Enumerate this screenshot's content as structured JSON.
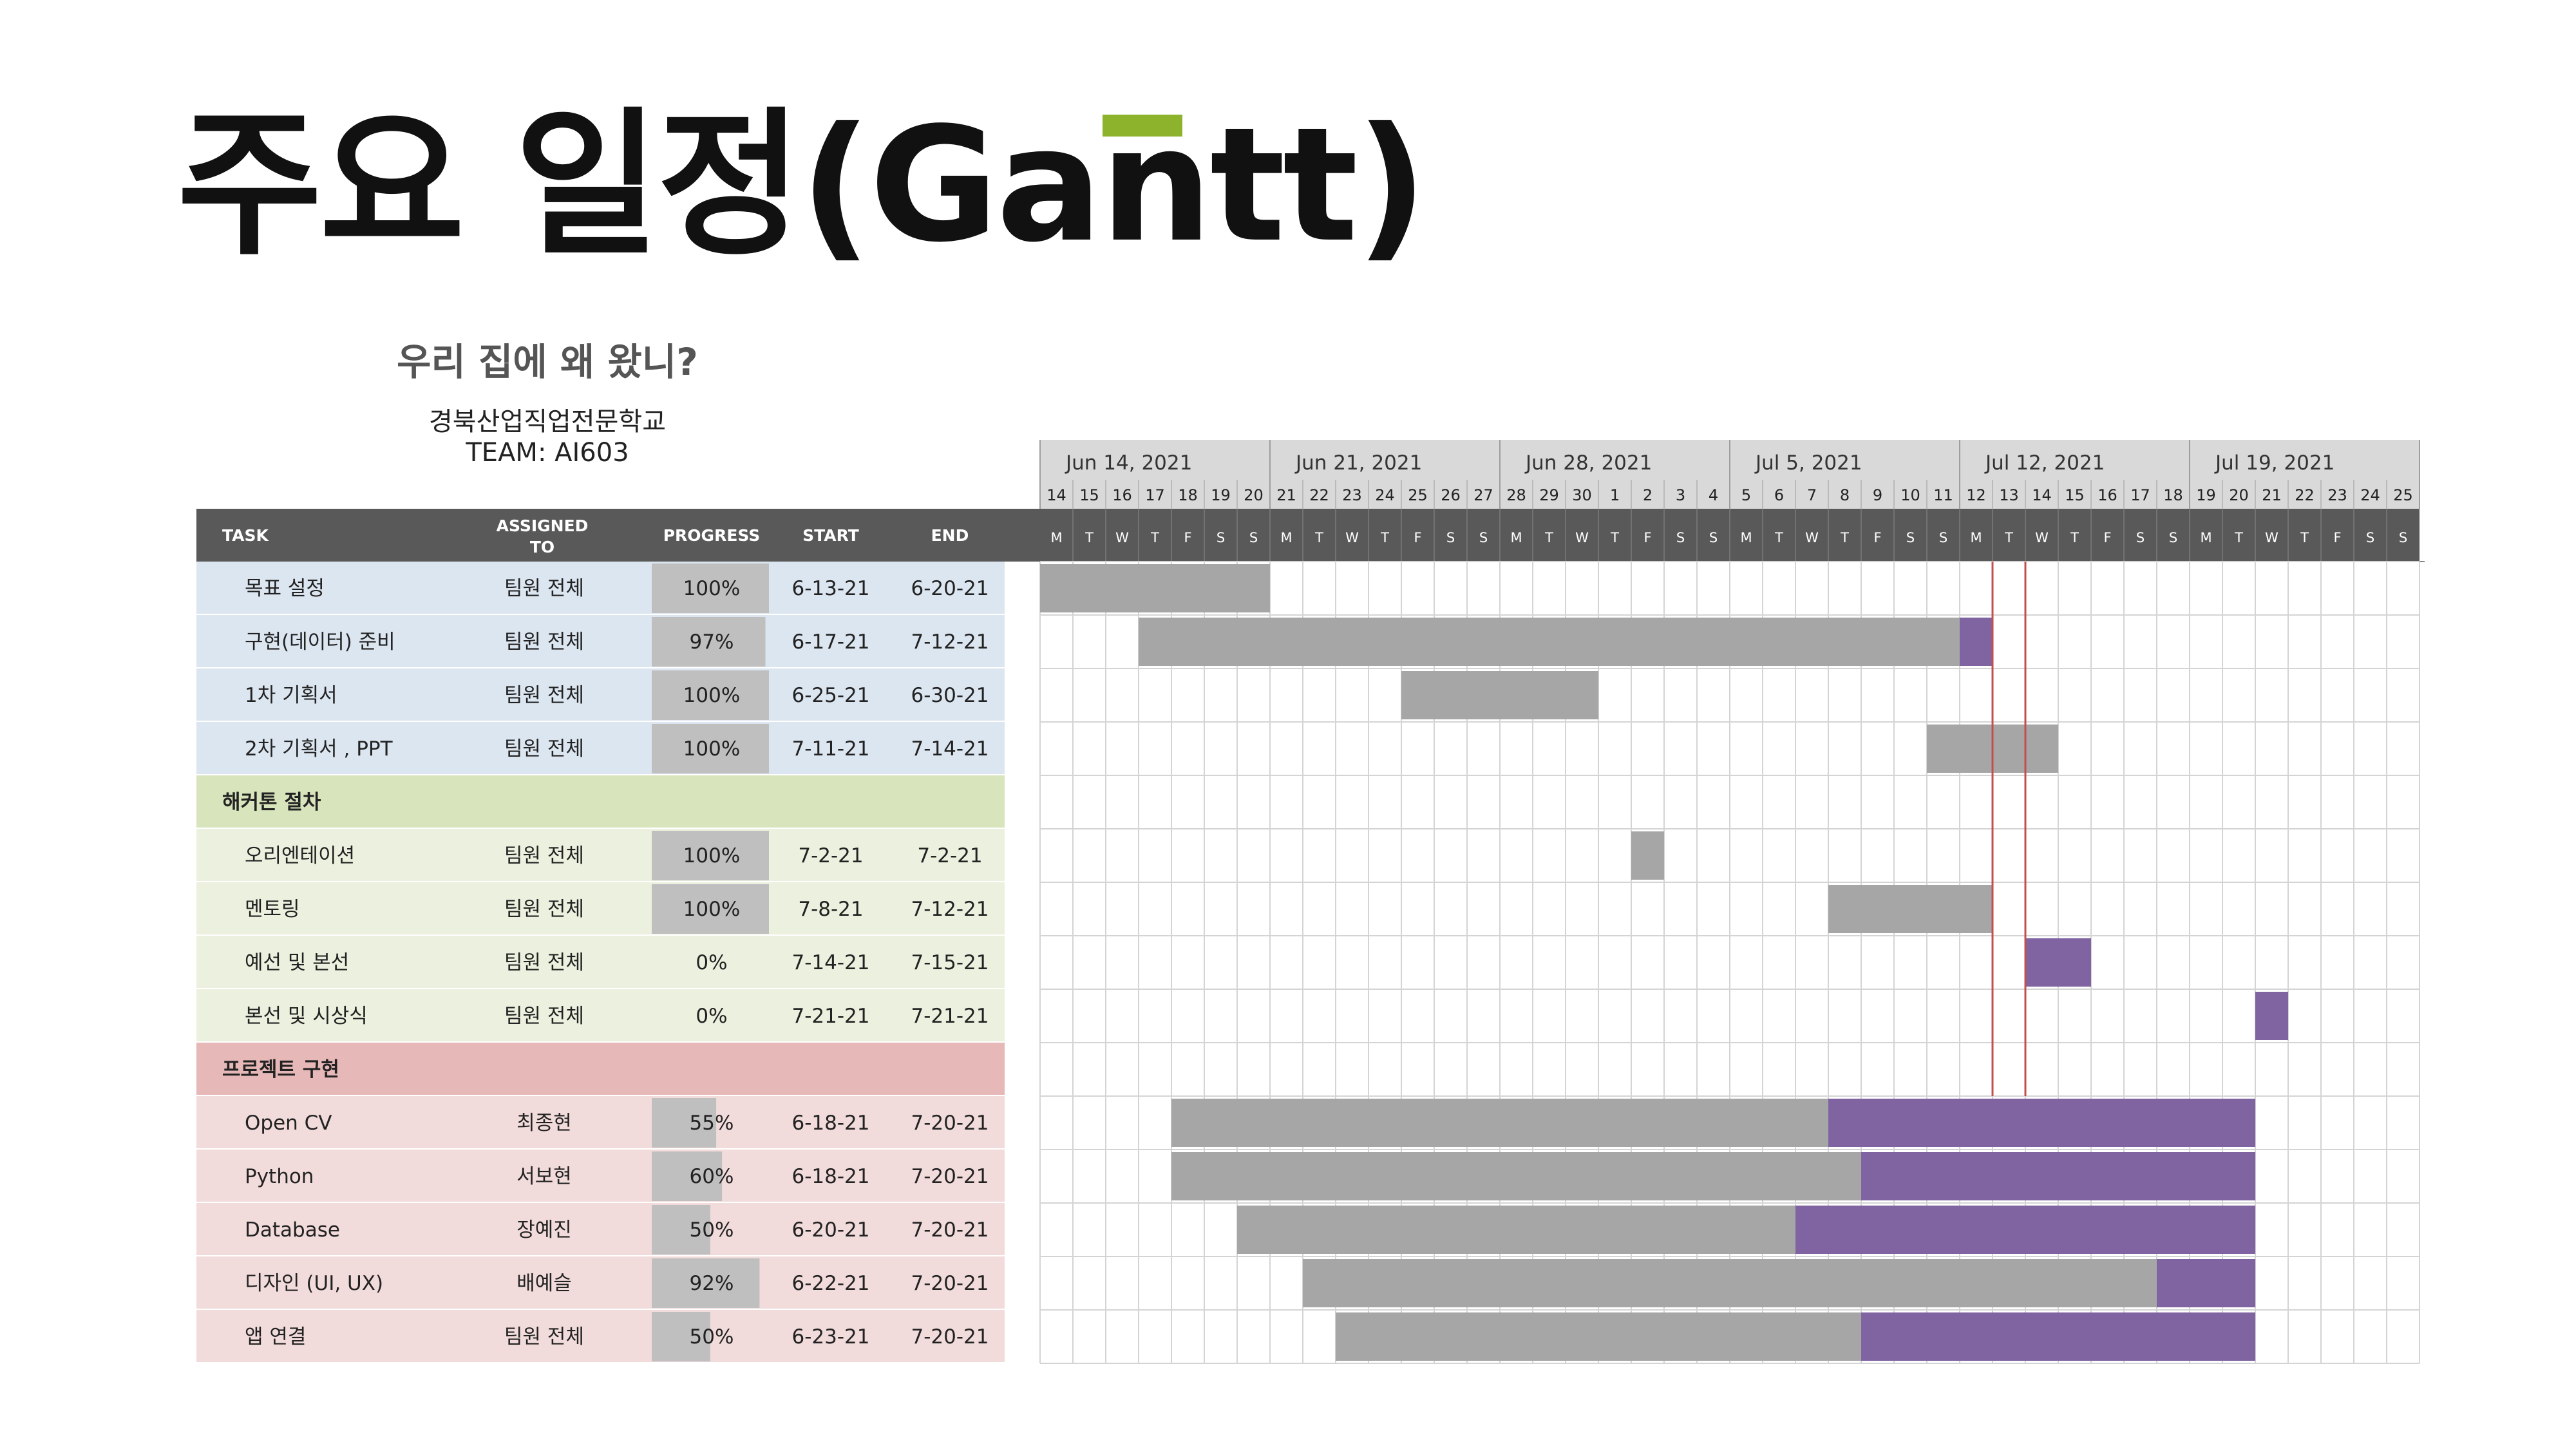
{
  "slide": {
    "title": "주요 일정(Gantt)",
    "accent_color": "#8db32c"
  },
  "project": {
    "name": "우리 집에 왜 왔니?",
    "school": "경북산업직업전문학교",
    "team": "TEAM: AI603"
  },
  "chart_data": {
    "type": "table",
    "chart_type": "gantt",
    "columns": [
      "TASK",
      "ASSIGNED TO",
      "PROGRESS",
      "START",
      "END"
    ],
    "week_labels": [
      "Jun 14, 2021",
      "Jun 21, 2021",
      "Jun 28, 2021",
      "Jul 5, 2021",
      "Jul 12, 2021",
      "Jul 19, 2021"
    ],
    "week_days": [
      [
        "14",
        "15",
        "16",
        "17",
        "18",
        "19",
        "20"
      ],
      [
        "21",
        "22",
        "23",
        "24",
        "25",
        "26",
        "27"
      ],
      [
        "28",
        "29",
        "30",
        "1",
        "2",
        "3",
        "4"
      ],
      [
        "5",
        "6",
        "7",
        "8",
        "9",
        "10",
        "11"
      ],
      [
        "12",
        "13",
        "14",
        "15",
        "16",
        "17",
        "18"
      ],
      [
        "19",
        "20",
        "21",
        "22",
        "23",
        "24",
        "25"
      ]
    ],
    "weekday_letters": [
      "M",
      "T",
      "W",
      "T",
      "F",
      "S",
      "S"
    ],
    "timeline_start": "2021-06-14",
    "timeline_end": "2021-07-25",
    "today_range": [
      "2021-07-13",
      "2021-07-14"
    ],
    "colors": {
      "header_bg": "#595959",
      "week_bg": "#d9d9d9",
      "bar_done": "#a6a6a6",
      "bar_remaining": "#8064a2",
      "today_line": "#c0504d",
      "progress_fill": "#bfbfbf"
    },
    "rows": [
      {
        "kind": "task",
        "section": "blue",
        "task": "목표 설정",
        "assigned": "팀원 전체",
        "progress": "100%",
        "start": "6-13-21",
        "end": "6-20-21",
        "bar_start": "2021-06-14",
        "bar_end": "2021-06-20",
        "done_end": "2021-06-20"
      },
      {
        "kind": "task",
        "section": "blue",
        "task": "구현(데이터) 준비",
        "assigned": "팀원 전체",
        "progress": "97%",
        "start": "6-17-21",
        "end": "7-12-21",
        "bar_start": "2021-06-17",
        "bar_end": "2021-07-12",
        "done_end": "2021-07-11"
      },
      {
        "kind": "task",
        "section": "blue",
        "task": "1차 기획서",
        "assigned": "팀원 전체",
        "progress": "100%",
        "start": "6-25-21",
        "end": "6-30-21",
        "bar_start": "2021-06-25",
        "bar_end": "2021-06-30",
        "done_end": "2021-06-30"
      },
      {
        "kind": "task",
        "section": "blue",
        "task": "2차 기획서 , PPT",
        "assigned": "팀원 전체",
        "progress": "100%",
        "start": "7-11-21",
        "end": "7-14-21",
        "bar_start": "2021-07-11",
        "bar_end": "2021-07-14",
        "done_end": "2021-07-14"
      },
      {
        "kind": "section",
        "section": "green",
        "task": "해커톤 절차"
      },
      {
        "kind": "task",
        "section": "green",
        "task": "오리엔테이션",
        "assigned": "팀원 전체",
        "progress": "100%",
        "start": "7-2-21",
        "end": "7-2-21",
        "bar_start": "2021-07-02",
        "bar_end": "2021-07-02",
        "done_end": "2021-07-02"
      },
      {
        "kind": "task",
        "section": "green",
        "task": "멘토링",
        "assigned": "팀원 전체",
        "progress": "100%",
        "start": "7-8-21",
        "end": "7-12-21",
        "bar_start": "2021-07-08",
        "bar_end": "2021-07-12",
        "done_end": "2021-07-12"
      },
      {
        "kind": "task",
        "section": "green",
        "task": "예선 및 본선",
        "assigned": "팀원 전체",
        "progress": "0%",
        "start": "7-14-21",
        "end": "7-15-21",
        "bar_start": "2021-07-14",
        "bar_end": "2021-07-15",
        "done_end": null
      },
      {
        "kind": "task",
        "section": "green",
        "task": "본선 및 시상식",
        "assigned": "팀원 전체",
        "progress": "0%",
        "start": "7-21-21",
        "end": "7-21-21",
        "bar_start": "2021-07-21",
        "bar_end": "2021-07-21",
        "done_end": null
      },
      {
        "kind": "section",
        "section": "red",
        "task": "프로젝트 구현"
      },
      {
        "kind": "task",
        "section": "red",
        "task": "Open CV",
        "assigned": "최종현",
        "progress": "55%",
        "start": "6-18-21",
        "end": "7-20-21",
        "bar_start": "2021-06-18",
        "bar_end": "2021-07-20",
        "done_end": "2021-07-07"
      },
      {
        "kind": "task",
        "section": "red",
        "task": "Python",
        "assigned": "서보현",
        "progress": "60%",
        "start": "6-18-21",
        "end": "7-20-21",
        "bar_start": "2021-06-18",
        "bar_end": "2021-07-20",
        "done_end": "2021-07-08"
      },
      {
        "kind": "task",
        "section": "red",
        "task": "Database",
        "assigned": "장예진",
        "progress": "50%",
        "start": "6-20-21",
        "end": "7-20-21",
        "bar_start": "2021-06-20",
        "bar_end": "2021-07-20",
        "done_end": "2021-07-06"
      },
      {
        "kind": "task",
        "section": "red",
        "task": "디자인 (UI, UX)",
        "assigned": "배예슬",
        "progress": "92%",
        "start": "6-22-21",
        "end": "7-20-21",
        "bar_start": "2021-06-22",
        "bar_end": "2021-07-20",
        "done_end": "2021-07-17"
      },
      {
        "kind": "task",
        "section": "red",
        "task": "앱 연결",
        "assigned": "팀원 전체",
        "progress": "50%",
        "start": "6-23-21",
        "end": "7-20-21",
        "bar_start": "2021-06-23",
        "bar_end": "2021-07-20",
        "done_end": "2021-07-08"
      }
    ]
  }
}
